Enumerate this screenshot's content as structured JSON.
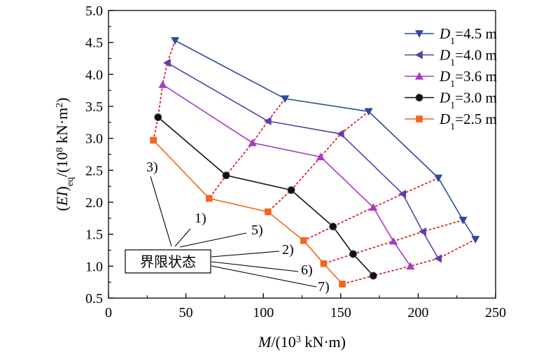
{
  "chart_data": {
    "type": "line",
    "xlim": [
      0,
      250
    ],
    "ylim": [
      0.5,
      5.0
    ],
    "x_ticks": [
      0,
      50,
      100,
      150,
      200,
      250
    ],
    "y_ticks": [
      "0.5",
      "1.0",
      "1.5",
      "2.0",
      "2.5",
      "3.0",
      "3.5",
      "4.0",
      "4.5",
      "5.0"
    ],
    "xlabel": {
      "italic": "M",
      "rest": "/(10",
      "sup": "3",
      "unit": " kN·m)"
    },
    "ylabel": {
      "lpar": "(",
      "italic": "EI",
      "rpar": ")",
      "sub": "eq",
      "rest": "/(10",
      "sup": "8",
      "unit": " kN·m",
      "sup2": "2",
      "end": ")"
    },
    "legend_position": "top-right",
    "series": [
      {
        "name": "D1=4.5 m",
        "legend": {
          "italic": "D",
          "sub": "1",
          "rest": "=4.5 m"
        },
        "color": "#2E4A9E",
        "marker": "triangle-down",
        "x": [
          43,
          114,
          168,
          213,
          229,
          237
        ],
        "y": [
          4.53,
          3.62,
          3.42,
          2.38,
          1.72,
          1.42
        ]
      },
      {
        "name": "D1=4.0 m",
        "legend": {
          "italic": "D",
          "sub": "1",
          "rest": "=4.0 m"
        },
        "color": "#5B3FA8",
        "marker": "triangle-left",
        "x": [
          38,
          103,
          150,
          190,
          203,
          213
        ],
        "y": [
          4.18,
          3.27,
          3.07,
          2.13,
          1.54,
          1.12
        ]
      },
      {
        "name": "D1=3.6 m",
        "legend": {
          "italic": "D",
          "sub": "1",
          "rest": "=3.6 m"
        },
        "color": "#A63AC3",
        "marker": "triangle-up",
        "x": [
          35,
          93,
          137,
          171,
          184,
          195
        ],
        "y": [
          3.84,
          2.93,
          2.71,
          1.92,
          1.39,
          1.0
        ]
      },
      {
        "name": "D1=3.0 m",
        "legend": {
          "italic": "D",
          "sub": "1",
          "rest": "=3.0 m"
        },
        "color": "#111111",
        "marker": "circle",
        "x": [
          32,
          76,
          118,
          145,
          158,
          171
        ],
        "y": [
          3.33,
          2.42,
          2.19,
          1.62,
          1.19,
          0.85
        ]
      },
      {
        "name": "D1=2.5 m",
        "legend": {
          "italic": "D",
          "sub": "1",
          "rest": "=2.5 m"
        },
        "color": "#F26522",
        "marker": "square",
        "x": [
          29,
          65,
          103,
          126,
          139,
          151
        ],
        "y": [
          2.97,
          2.06,
          1.85,
          1.4,
          1.04,
          0.72
        ]
      }
    ],
    "limit_state_curves": {
      "color": "#D9232D",
      "style": "dotted"
    },
    "annotations": {
      "box_label": "界限状态",
      "labels": [
        "3)",
        "1)",
        "5)",
        "2)",
        "6)",
        "7)"
      ]
    }
  }
}
